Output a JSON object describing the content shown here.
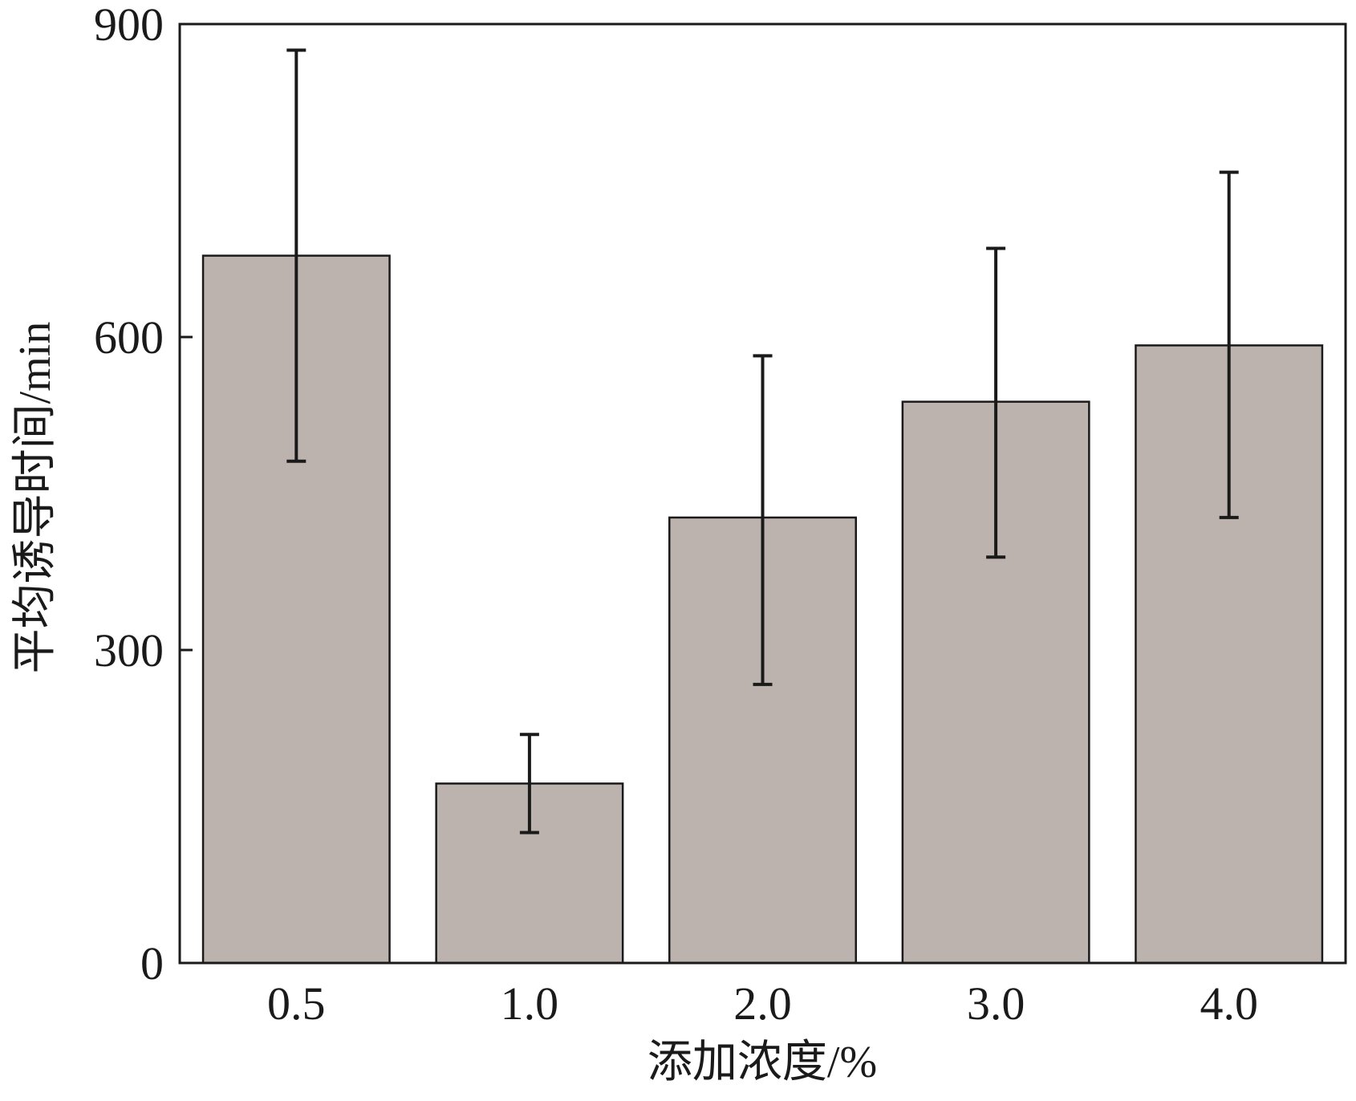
{
  "chart_data": {
    "type": "bar",
    "title": "",
    "xlabel": "添加浓度/%",
    "ylabel": "平均诱导时间/min",
    "categories": [
      "0.5",
      "1.0",
      "2.0",
      "3.0",
      "4.0"
    ],
    "values": [
      678,
      172,
      427,
      538,
      592
    ],
    "error_low": [
      481,
      125,
      267,
      389,
      427
    ],
    "error_high": [
      875,
      219,
      582,
      685,
      758
    ],
    "ylim": [
      0,
      900
    ],
    "yticks": [
      "0",
      "300",
      "600",
      "900"
    ],
    "grid": false,
    "colors": {
      "bar": "#bcb3af",
      "edge": "#1a1a1a"
    }
  }
}
